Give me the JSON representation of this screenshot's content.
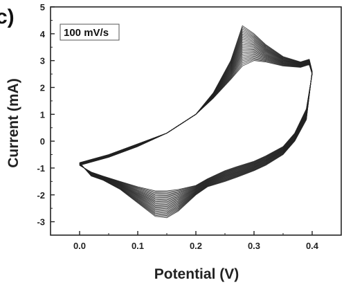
{
  "panel_label": "c)",
  "chart_data": {
    "type": "line",
    "title": "",
    "annotation": "100 mV/s",
    "xlabel": "Potential (V)",
    "ylabel": "Current (mA)",
    "xlim": [
      -0.05,
      0.45
    ],
    "ylim": [
      -3.5,
      5
    ],
    "xticks": [
      0.0,
      0.1,
      0.2,
      0.3,
      0.4
    ],
    "xtick_labels": [
      "0.0",
      "0.1",
      "0.2",
      "0.3",
      "0.4"
    ],
    "yticks": [
      -3,
      -2,
      -1,
      0,
      1,
      2,
      3,
      4,
      5
    ],
    "ytick_labels": [
      "-3",
      "-2",
      "-1",
      "0",
      "1",
      "2",
      "3",
      "4",
      "5"
    ],
    "grid": false,
    "legend": "none",
    "cycle_count": 25,
    "line_color": "#222222",
    "series_first_cycle": {
      "anodic": {
        "x": [
          0.0,
          0.05,
          0.1,
          0.15,
          0.2,
          0.23,
          0.26,
          0.28,
          0.3,
          0.32,
          0.35,
          0.38,
          0.395,
          0.4
        ],
        "y": [
          -0.9,
          -0.6,
          -0.2,
          0.3,
          1.0,
          1.6,
          2.3,
          2.8,
          3.0,
          2.95,
          2.8,
          2.75,
          2.85,
          2.5
        ]
      },
      "cathodic": {
        "x": [
          0.4,
          0.39,
          0.37,
          0.35,
          0.32,
          0.3,
          0.27,
          0.25,
          0.22,
          0.2,
          0.17,
          0.15,
          0.13,
          0.1,
          0.07,
          0.04,
          0.02,
          0.0
        ],
        "y": [
          2.5,
          1.2,
          0.3,
          -0.2,
          -0.55,
          -0.75,
          -0.95,
          -1.1,
          -1.4,
          -1.65,
          -1.8,
          -1.85,
          -1.85,
          -1.7,
          -1.5,
          -1.3,
          -1.15,
          -0.9
        ]
      }
    },
    "series_last_cycle": {
      "anodic": {
        "x": [
          0.0,
          0.05,
          0.1,
          0.15,
          0.2,
          0.23,
          0.26,
          0.28,
          0.3,
          0.32,
          0.35,
          0.38,
          0.395,
          0.4
        ],
        "y": [
          -0.8,
          -0.5,
          -0.1,
          0.3,
          1.0,
          1.8,
          3.0,
          4.3,
          4.0,
          3.6,
          3.15,
          2.95,
          3.05,
          2.6
        ]
      },
      "cathodic": {
        "x": [
          0.4,
          0.39,
          0.37,
          0.35,
          0.32,
          0.3,
          0.27,
          0.25,
          0.22,
          0.2,
          0.17,
          0.15,
          0.13,
          0.1,
          0.07,
          0.04,
          0.02,
          0.0
        ],
        "y": [
          2.6,
          0.8,
          0.0,
          -0.5,
          -0.9,
          -1.1,
          -1.35,
          -1.5,
          -1.7,
          -2.0,
          -2.6,
          -2.85,
          -2.8,
          -2.3,
          -1.8,
          -1.45,
          -1.3,
          -0.8
        ]
      }
    }
  }
}
